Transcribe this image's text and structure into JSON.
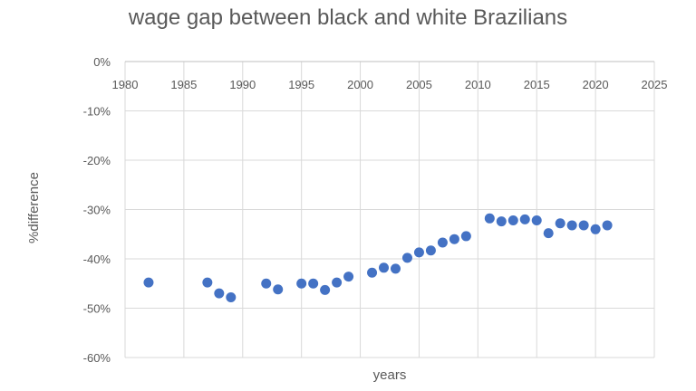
{
  "chart_data": {
    "type": "scatter",
    "title": "wage gap between black and white Brazilians",
    "xlabel": "years",
    "ylabel": "%difference",
    "xlim": [
      1980,
      2025
    ],
    "ylim": [
      -60,
      0
    ],
    "xticks": [
      "1980",
      "1985",
      "1990",
      "1995",
      "2000",
      "2005",
      "2010",
      "2015",
      "2020",
      "2025"
    ],
    "yticks": [
      "0%",
      "-10%",
      "-20%",
      "-30%",
      "-40%",
      "-50%",
      "-60%"
    ],
    "grid": true,
    "series": [
      {
        "color": "#4472c4",
        "points": [
          {
            "x": 1982,
            "y": -44.8
          },
          {
            "x": 1987,
            "y": -44.8
          },
          {
            "x": 1988,
            "y": -47.0
          },
          {
            "x": 1989,
            "y": -47.8
          },
          {
            "x": 1992,
            "y": -45.0
          },
          {
            "x": 1993,
            "y": -46.2
          },
          {
            "x": 1995,
            "y": -45.0
          },
          {
            "x": 1996,
            "y": -45.0
          },
          {
            "x": 1997,
            "y": -46.3
          },
          {
            "x": 1998,
            "y": -44.8
          },
          {
            "x": 1999,
            "y": -43.6
          },
          {
            "x": 2001,
            "y": -42.8
          },
          {
            "x": 2002,
            "y": -41.8
          },
          {
            "x": 2003,
            "y": -42.0
          },
          {
            "x": 2004,
            "y": -39.8
          },
          {
            "x": 2005,
            "y": -38.7
          },
          {
            "x": 2006,
            "y": -38.3
          },
          {
            "x": 2007,
            "y": -36.7
          },
          {
            "x": 2008,
            "y": -36.0
          },
          {
            "x": 2009,
            "y": -35.4
          },
          {
            "x": 2011,
            "y": -31.8
          },
          {
            "x": 2012,
            "y": -32.4
          },
          {
            "x": 2013,
            "y": -32.2
          },
          {
            "x": 2014,
            "y": -32.0
          },
          {
            "x": 2015,
            "y": -32.2
          },
          {
            "x": 2016,
            "y": -34.8
          },
          {
            "x": 2017,
            "y": -32.8
          },
          {
            "x": 2018,
            "y": -33.2
          },
          {
            "x": 2019,
            "y": -33.2
          },
          {
            "x": 2020,
            "y": -34.0
          },
          {
            "x": 2021,
            "y": -33.2
          }
        ]
      }
    ]
  }
}
